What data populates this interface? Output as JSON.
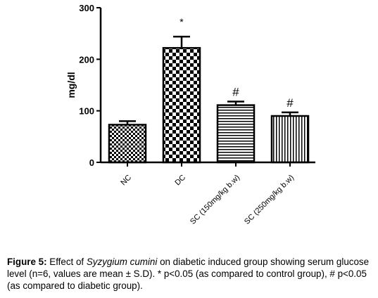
{
  "chart_data": {
    "type": "bar",
    "ylabel": "mg/dl",
    "xlabel": "",
    "ylim": [
      0,
      300
    ],
    "yticks": [
      0,
      100,
      200,
      300
    ],
    "categories": [
      "NC",
      "DC",
      "SC (150mg/kg b.w)",
      "SC (250mg/kg b.w)"
    ],
    "values": [
      73,
      222,
      111,
      90
    ],
    "errors": [
      7,
      22,
      7,
      7
    ],
    "annotations": [
      "",
      "*",
      "#",
      "#"
    ],
    "patterns": [
      "checker-small",
      "checker-large",
      "horizontal-lines",
      "vertical-lines"
    ]
  },
  "caption": {
    "label": "Figure 5:",
    "text_before": " Effect of ",
    "species": "Syzygium cumini",
    "text_after": " on diabetic induced group showing serum glucose level (n=6, values are mean ± S.D). * p<0.05 (as compared to control group), # p<0.05 (as compared to diabetic group)."
  }
}
